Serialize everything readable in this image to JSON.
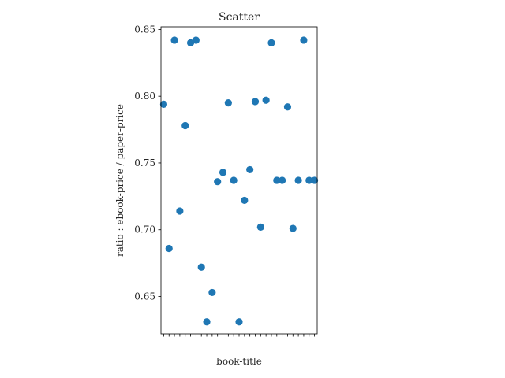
{
  "chart_data": {
    "type": "scatter",
    "title": "Scatter",
    "xlabel": "book-title",
    "ylabel": "ratio : ebook-price / paper-price",
    "x_tick_labels_legible": false,
    "ylim": [
      0.622,
      0.852
    ],
    "yticks": [
      0.65,
      0.7,
      0.75,
      0.8,
      0.85
    ],
    "ytick_labels": [
      "0.65",
      "0.70",
      "0.75",
      "0.80",
      "0.85"
    ],
    "grid": false,
    "color": "#1f77b4",
    "points": [
      {
        "x": 1,
        "y": 0.794
      },
      {
        "x": 2,
        "y": 0.686
      },
      {
        "x": 3,
        "y": 0.842
      },
      {
        "x": 4,
        "y": 0.714
      },
      {
        "x": 5,
        "y": 0.778
      },
      {
        "x": 6,
        "y": 0.84
      },
      {
        "x": 7,
        "y": 0.842
      },
      {
        "x": 8,
        "y": 0.672
      },
      {
        "x": 9,
        "y": 0.631
      },
      {
        "x": 10,
        "y": 0.653
      },
      {
        "x": 11,
        "y": 0.736
      },
      {
        "x": 12,
        "y": 0.743
      },
      {
        "x": 13,
        "y": 0.795
      },
      {
        "x": 14,
        "y": 0.737
      },
      {
        "x": 15,
        "y": 0.631
      },
      {
        "x": 16,
        "y": 0.722
      },
      {
        "x": 17,
        "y": 0.745
      },
      {
        "x": 18,
        "y": 0.796
      },
      {
        "x": 19,
        "y": 0.702
      },
      {
        "x": 20,
        "y": 0.797
      },
      {
        "x": 21,
        "y": 0.84
      },
      {
        "x": 22,
        "y": 0.737
      },
      {
        "x": 23,
        "y": 0.737
      },
      {
        "x": 24,
        "y": 0.792
      },
      {
        "x": 25,
        "y": 0.701
      },
      {
        "x": 26,
        "y": 0.737
      },
      {
        "x": 27,
        "y": 0.842
      },
      {
        "x": 28,
        "y": 0.737
      },
      {
        "x": 29,
        "y": 0.737
      }
    ]
  }
}
